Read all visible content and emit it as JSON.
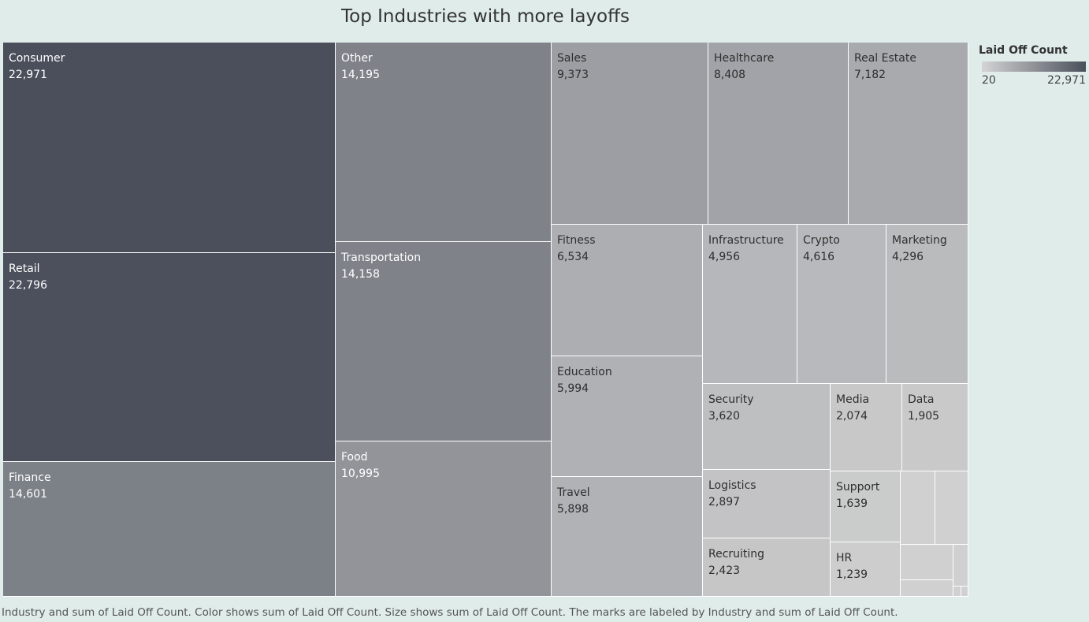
{
  "chart_data": {
    "type": "treemap",
    "title": "Top Industries with more layoffs",
    "measure": "Laid Off Count",
    "series": [
      {
        "name": "Consumer",
        "value": 22971
      },
      {
        "name": "Retail",
        "value": 22796
      },
      {
        "name": "Finance",
        "value": 14601
      },
      {
        "name": "Other",
        "value": 14195
      },
      {
        "name": "Transportation",
        "value": 14158
      },
      {
        "name": "Food",
        "value": 10995
      },
      {
        "name": "Sales",
        "value": 9373
      },
      {
        "name": "Healthcare",
        "value": 8408
      },
      {
        "name": "Real Estate",
        "value": 7182
      },
      {
        "name": "Fitness",
        "value": 6534
      },
      {
        "name": "Education",
        "value": 5994
      },
      {
        "name": "Travel",
        "value": 5898
      },
      {
        "name": "Infrastructure",
        "value": 4956
      },
      {
        "name": "Crypto",
        "value": 4616
      },
      {
        "name": "Marketing",
        "value": 4296
      },
      {
        "name": "Security",
        "value": 3620
      },
      {
        "name": "Logistics",
        "value": 2897
      },
      {
        "name": "Recruiting",
        "value": 2423
      },
      {
        "name": "Media",
        "value": 2074
      },
      {
        "name": "Data",
        "value": 1905
      },
      {
        "name": "Support",
        "value": 1639
      },
      {
        "name": "HR",
        "value": 1239
      }
    ],
    "unlabeled_tile_count": 7,
    "legend": {
      "title": "Laid Off Count",
      "min_label": "20",
      "max_label": "22,971",
      "min_value": 20,
      "max_value": 22971,
      "color_low": "#d4d4d4",
      "color_high": "#4a4f5b",
      "placement": "top-right"
    }
  },
  "caption": "Industry and sum of Laid Off Count.  Color shows sum of Laid Off Count.  Size shows sum of Laid Off Count.  The marks are labeled by Industry and sum of Laid Off Count."
}
